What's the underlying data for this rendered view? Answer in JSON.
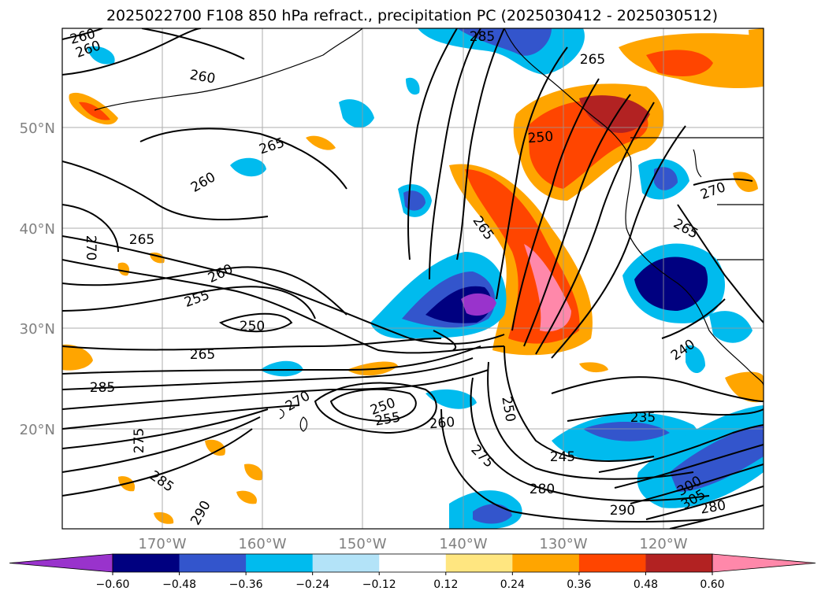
{
  "title": "2025022700 F108 850 hPa refract., precipitation PC (2025030412 - 2025030512)",
  "map": {
    "lat_labels": [
      "50°N",
      "40°N",
      "30°N",
      "20°N"
    ],
    "lon_labels": [
      "170°W",
      "160°W",
      "150°W",
      "140°W",
      "130°W",
      "120°W"
    ],
    "contour_labels": [
      "260",
      "260",
      "260",
      "265",
      "260",
      "265",
      "270",
      "260",
      "255",
      "250",
      "265",
      "285",
      "275",
      "285",
      "290",
      "270",
      "250",
      "255",
      "260",
      "265",
      "250",
      "250",
      "275",
      "245",
      "280",
      "290",
      "235",
      "240",
      "265",
      "270",
      "265",
      "285",
      "300",
      "305",
      "280"
    ]
  },
  "colorbar": {
    "ticks": [
      "−0.60",
      "−0.48",
      "−0.36",
      "−0.24",
      "−0.12",
      "0.12",
      "0.24",
      "0.36",
      "0.48",
      "0.60"
    ],
    "colors": [
      "#9933cc",
      "#000080",
      "#3355cc",
      "#00bbee",
      "#b3e3f8",
      "#ffffff",
      "#ffe680",
      "#ffa500",
      "#ff4500",
      "#b22222",
      "#ff88aa"
    ]
  }
}
